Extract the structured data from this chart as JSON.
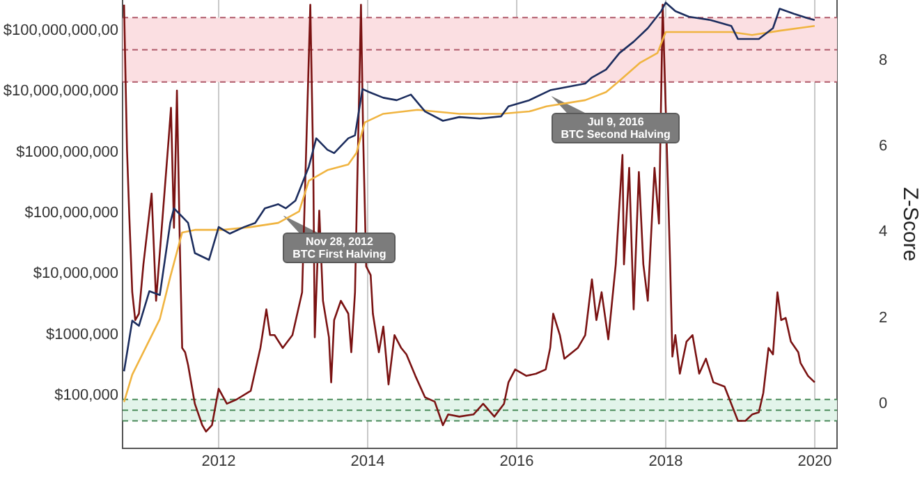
{
  "chart_data": {
    "type": "line",
    "y2label": "Z-Score",
    "xlim": [
      2010.71,
      2020.3
    ],
    "xticks": [
      2012,
      2014,
      2016,
      2018,
      2020
    ],
    "ylim": [
      13500,
      320000000000
    ],
    "yticks": [
      {
        "value": 100000,
        "label": "$100,000"
      },
      {
        "value": 1000000,
        "label": "$1000,000"
      },
      {
        "value": 10000000,
        "label": "$10,000,000"
      },
      {
        "value": 100000000,
        "label": "$100,000,000"
      },
      {
        "value": 1000000000,
        "label": "$1000,000,000"
      },
      {
        "value": 10000000000,
        "label": "$10,000,000,000"
      },
      {
        "value": 100000000000,
        "label": "$100,000,000,00"
      }
    ],
    "y2lim": [
      -1.04,
      9.41
    ],
    "y2ticks": [
      0,
      2,
      4,
      6,
      8
    ],
    "log": "y",
    "grid": "x",
    "legend": false,
    "marker": "none",
    "line_style": "solid",
    "bands": [
      {
        "axis": "y2",
        "from": 7.5,
        "to": 9,
        "color": "#fbdfe2"
      },
      {
        "axis": "y2",
        "from": -0.4,
        "to": 0.1,
        "color": "#e2f4ea"
      }
    ],
    "ref_lines": [
      {
        "axis": "y2",
        "value": 9,
        "color": "#b05a6a",
        "line_style": "dashed"
      },
      {
        "axis": "y2",
        "value": 8.25,
        "color": "#b05a6a",
        "line_style": "dashed"
      },
      {
        "axis": "y2",
        "value": 7.5,
        "color": "#b05a6a",
        "line_style": "dashed"
      },
      {
        "axis": "y2",
        "value": 0.1,
        "color": "#4a8a5a",
        "line_style": "dashed"
      },
      {
        "axis": "y2",
        "value": -0.15,
        "color": "#4a8a5a",
        "line_style": "dashed"
      },
      {
        "axis": "y2",
        "value": -0.4,
        "color": "#4a8a5a",
        "line_style": "dashed"
      }
    ],
    "annotations": [
      {
        "text": "Nov 28, 2012\nBTC First Halving",
        "x": 2012.9,
        "y": 120000000
      },
      {
        "text": "Jul 9, 2016\nBTC Second Halving",
        "x": 2016.5,
        "y": 11000000000
      }
    ],
    "series": [
      {
        "type": "line",
        "color": "#1c2d5e",
        "x": [
          2010.73,
          2010.84,
          2010.93,
          2011.07,
          2011.21,
          2011.35,
          2011.4,
          2011.59,
          2011.68,
          2011.87,
          2012.0,
          2012.15,
          2012.34,
          2012.49,
          2012.62,
          2012.8,
          2012.9,
          2013.03,
          2013.21,
          2013.31,
          2013.46,
          2013.55,
          2013.74,
          2013.83,
          2013.93,
          2014.02,
          2014.21,
          2014.39,
          2014.58,
          2014.77,
          2015.01,
          2015.23,
          2015.51,
          2015.79,
          2015.89,
          2016.17,
          2016.45,
          2016.92,
          2017.01,
          2017.2,
          2017.38,
          2017.57,
          2017.76,
          2017.94,
          2018.0,
          2018.13,
          2018.31,
          2018.6,
          2018.88,
          2018.97,
          2019.25,
          2019.44,
          2019.53,
          2019.72,
          2019.91,
          2020.0
        ],
        "values": [
          250000,
          1700000,
          1400000,
          5200000,
          4500000,
          69000000,
          120000000,
          69000000,
          22000000,
          17000000,
          59000000,
          46000000,
          59000000,
          69000000,
          120000000,
          140000000,
          120000000,
          160000000,
          580000000,
          1700000000,
          1100000000,
          970000000,
          1700000000,
          1900000000,
          11000000000,
          9800000000,
          7900000000,
          7200000000,
          8900000000,
          4700000000,
          3300000000,
          3800000000,
          3600000000,
          3900000000,
          5700000000,
          7200000000,
          10500000000,
          13500000000,
          17000000000,
          23000000000,
          43000000000,
          66000000000,
          110000000000,
          210000000000,
          290000000000,
          210000000000,
          170000000000,
          150000000000,
          120000000000,
          73000000000,
          73000000000,
          110000000000,
          230000000000,
          190000000000,
          160000000000,
          150000000000
        ]
      },
      {
        "type": "line",
        "color": "#f0b440",
        "x": [
          2010.73,
          2010.84,
          2011.03,
          2011.21,
          2011.35,
          2011.51,
          2011.68,
          2012.06,
          2012.43,
          2012.8,
          2013.08,
          2013.21,
          2013.46,
          2013.74,
          2013.85,
          2013.96,
          2014.21,
          2014.67,
          2015.23,
          2015.79,
          2016.17,
          2016.4,
          2016.92,
          2017.2,
          2017.38,
          2017.66,
          2017.89,
          2018.0,
          2018.22,
          2018.88,
          2019.16,
          2019.53,
          2020.0
        ],
        "values": [
          78000,
          220000,
          650000,
          1800000,
          8900000,
          48000000,
          53000000,
          53000000,
          59000000,
          69000000,
          107000000,
          340000000,
          510000000,
          630000000,
          980000000,
          3100000000,
          4300000000,
          5000000000,
          4300000000,
          4300000000,
          4700000000,
          5700000000,
          7200000000,
          9800000000,
          15000000000,
          30000000000,
          43000000000,
          95000000000,
          95000000000,
          95000000000,
          85000000000,
          100000000000,
          120000000000
        ]
      },
      {
        "type": "line",
        "color": "#7a1212",
        "axis": "y2",
        "x": [
          2010.73,
          2010.77,
          2010.8,
          2010.84,
          2010.88,
          2010.93,
          2010.99,
          2011.1,
          2011.16,
          2011.33,
          2011.36,
          2011.4,
          2011.44,
          2011.48,
          2011.51,
          2011.55,
          2011.59,
          2011.68,
          2011.78,
          2011.83,
          2011.91,
          2012.0,
          2012.11,
          2012.24,
          2012.43,
          2012.56,
          2012.64,
          2012.69,
          2012.75,
          2012.86,
          2012.99,
          2013.12,
          2013.23,
          2013.27,
          2013.29,
          2013.35,
          2013.4,
          2013.48,
          2013.51,
          2013.55,
          2013.64,
          2013.74,
          2013.78,
          2013.83,
          2013.91,
          2013.94,
          2013.98,
          2014.04,
          2014.07,
          2014.15,
          2014.21,
          2014.28,
          2014.36,
          2014.45,
          2014.52,
          2014.64,
          2014.77,
          2014.9,
          2015.01,
          2015.08,
          2015.23,
          2015.42,
          2015.55,
          2015.7,
          2015.83,
          2015.89,
          2015.98,
          2016.13,
          2016.26,
          2016.39,
          2016.45,
          2016.49,
          2016.58,
          2016.64,
          2016.82,
          2016.92,
          2017.01,
          2017.07,
          2017.14,
          2017.23,
          2017.33,
          2017.42,
          2017.44,
          2017.51,
          2017.57,
          2017.64,
          2017.7,
          2017.76,
          2017.85,
          2017.91,
          2017.96,
          2018.02,
          2018.06,
          2018.09,
          2018.13,
          2018.19,
          2018.28,
          2018.36,
          2018.45,
          2018.54,
          2018.64,
          2018.79,
          2018.97,
          2019.07,
          2019.16,
          2019.25,
          2019.31,
          2019.38,
          2019.44,
          2019.5,
          2019.55,
          2019.61,
          2019.68,
          2019.78,
          2019.81,
          2019.91,
          2020.0
        ],
        "values": [
          9.3,
          5.9,
          4.4,
          2.6,
          1.95,
          2.1,
          3.25,
          4.9,
          2.4,
          6.2,
          6.9,
          4.1,
          7.3,
          3.6,
          1.3,
          1.2,
          0.9,
          0,
          -0.5,
          -0.65,
          -0.5,
          0.35,
          0,
          0.1,
          0.3,
          1.3,
          2.2,
          1.6,
          1.6,
          1.3,
          1.6,
          2.6,
          9.3,
          5.5,
          1.55,
          4.5,
          2.4,
          1.55,
          0.5,
          1.95,
          2.4,
          2.1,
          1.2,
          2.6,
          9.3,
          6.2,
          3.2,
          3,
          2.1,
          1.2,
          1.8,
          0.45,
          1.6,
          1.3,
          1.15,
          0.65,
          0.15,
          0.05,
          -0.5,
          -0.25,
          -0.3,
          -0.25,
          0,
          -0.3,
          0,
          0.5,
          0.8,
          0.65,
          0.7,
          0.8,
          1.3,
          2.1,
          1.6,
          1.05,
          1.3,
          1.6,
          2.9,
          1.95,
          2.6,
          1.5,
          3.25,
          5.8,
          3.25,
          5.5,
          2.2,
          5.4,
          3.25,
          2.4,
          5.5,
          4.2,
          9.3,
          5.7,
          3.25,
          1.1,
          1.6,
          0.7,
          1.45,
          1.6,
          0.7,
          1.05,
          0.5,
          0.4,
          -0.4,
          -0.4,
          -0.25,
          -0.2,
          0.25,
          1.3,
          1.15,
          2.6,
          1.95,
          2,
          1.45,
          1.2,
          0.95,
          0.65,
          0.5
        ]
      }
    ]
  }
}
